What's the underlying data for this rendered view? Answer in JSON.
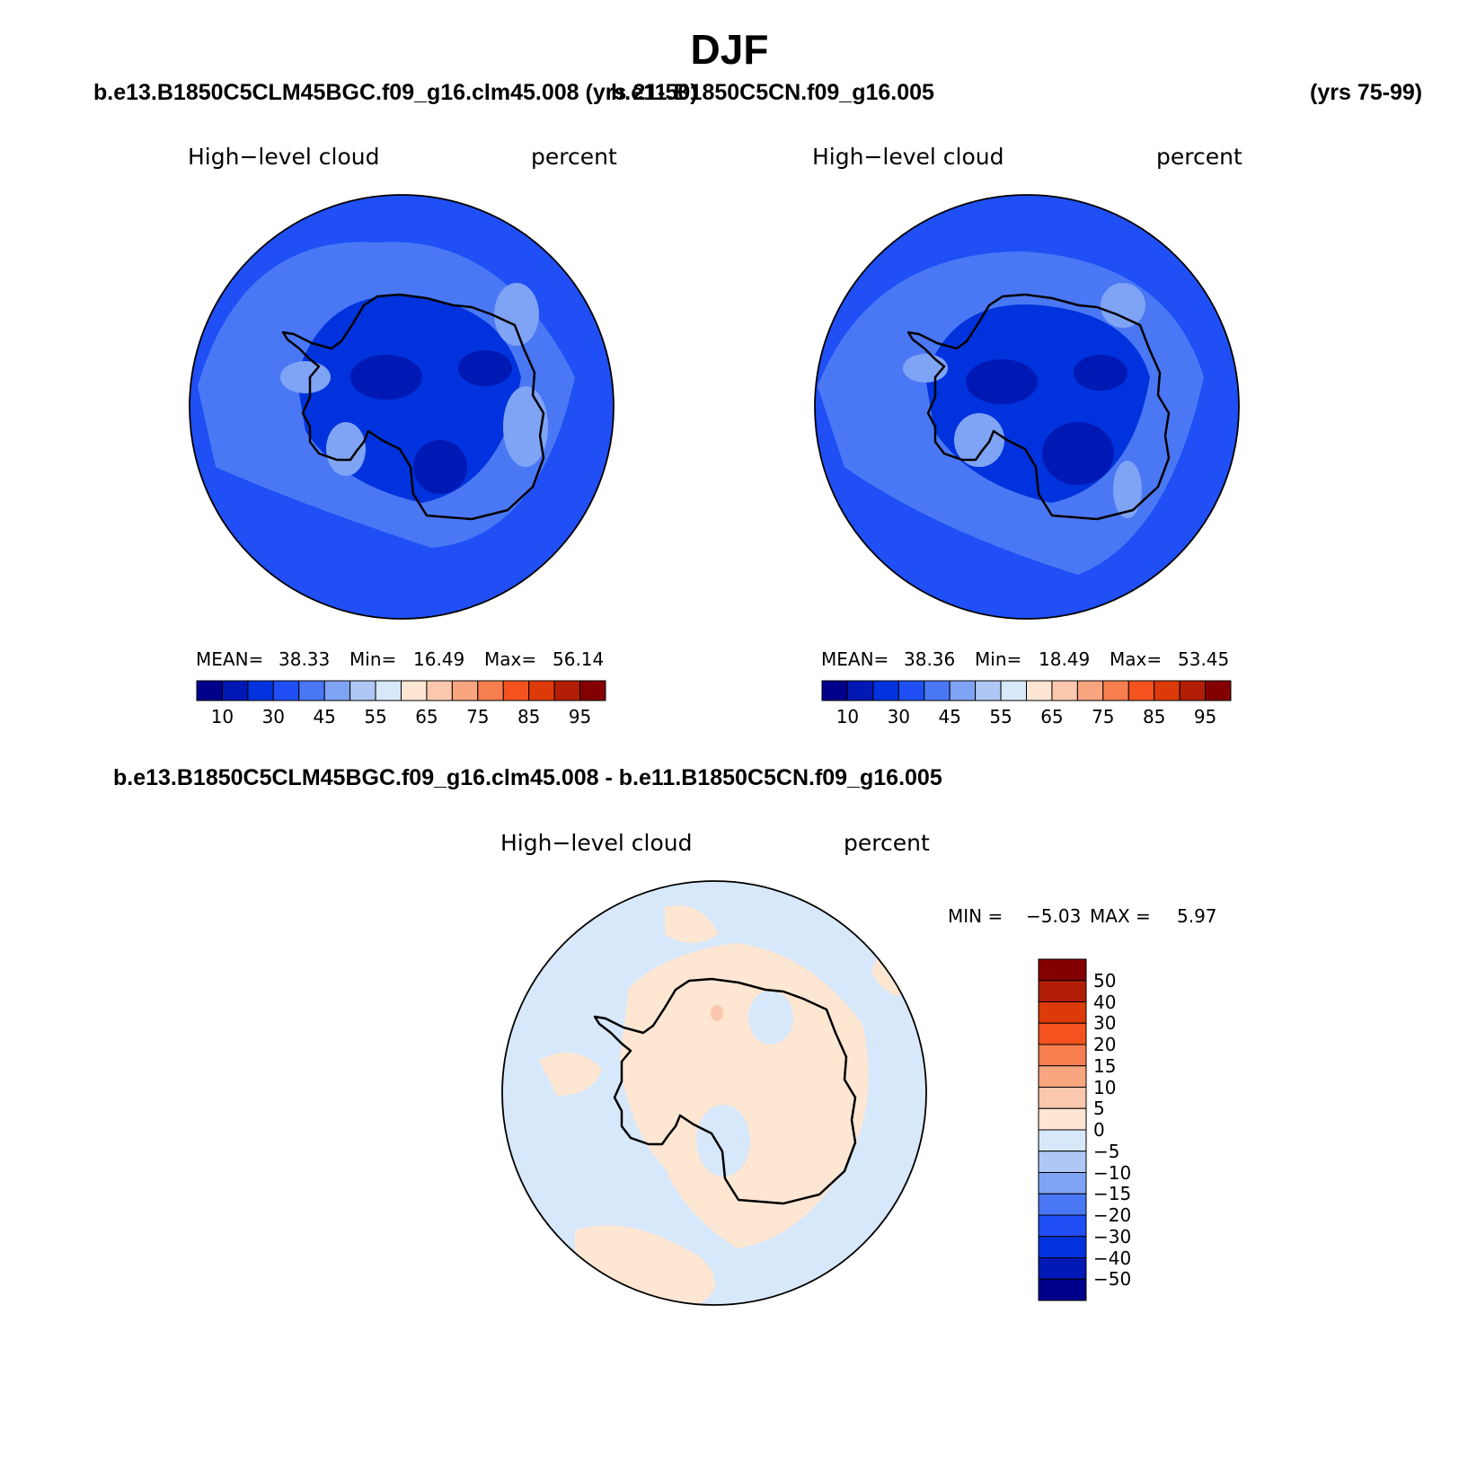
{
  "title": "DJF",
  "case1_title": "b.e13.B1850C5CLM45BGC.f09_g16.clm45.008 (yrs 21-50)",
  "case2_title": "b.e11.B1850C5CN.f09_g16.005",
  "case2_years": "(yrs 75-99)",
  "diff_title": "b.e13.B1850C5CLM45BGC.f09_g16.clm45.008 - b.e11.B1850C5CN.f09_g16.005",
  "panels": [
    {
      "variable": "High−level cloud",
      "units": "percent",
      "mean_label": "MEAN=",
      "mean": "38.33",
      "min_label": "Min=",
      "min": "16.49",
      "max_label": "Max=",
      "max": "56.14"
    },
    {
      "variable": "High−level cloud",
      "units": "percent",
      "mean_label": "MEAN=",
      "mean": "38.36",
      "min_label": "Min=",
      "min": "18.49",
      "max_label": "Max=",
      "max": "53.45"
    },
    {
      "variable": "High−level cloud",
      "units": "percent",
      "min_label": "MIN =",
      "min": "−5.03",
      "max_label": "MAX =",
      "max": "5.97"
    }
  ],
  "colorbar_abs": {
    "colors": [
      "#00008b",
      "#0019b5",
      "#0033dd",
      "#1f4ff5",
      "#4a78f5",
      "#7fa3f5",
      "#aec7f5",
      "#d8e8fb",
      "#fde6d2",
      "#fcc8ad",
      "#f9a57f",
      "#f77e4f",
      "#f4531f",
      "#dd3a0a",
      "#b21e05",
      "#840000"
    ],
    "labels": [
      "10",
      "30",
      "45",
      "55",
      "65",
      "75",
      "85",
      "95"
    ]
  },
  "colorbar_diff": {
    "colors": [
      "#840000",
      "#b21e05",
      "#dd3a0a",
      "#f4531f",
      "#f77e4f",
      "#f9a57f",
      "#fcc8ad",
      "#fde6d2",
      "#d8e8fb",
      "#aec7f5",
      "#7fa3f5",
      "#4a78f5",
      "#1f4ff5",
      "#0033dd",
      "#0019b5",
      "#00008b"
    ],
    "labels": [
      "50",
      "40",
      "30",
      "20",
      "15",
      "10",
      "5",
      "0",
      "−5",
      "−10",
      "−15",
      "−20",
      "−30",
      "−40",
      "−50"
    ]
  },
  "map_colors": {
    "ocean_abs": "#1f4ff5",
    "level_45": "#4a78f5",
    "level_55": "#7fa3f5",
    "level_30": "#0033dd",
    "level_10": "#0019b5",
    "diff_neg": "#d8e8fb",
    "diff_pos": "#fde6d2",
    "diff_pos_high": "#fcc8ad"
  }
}
